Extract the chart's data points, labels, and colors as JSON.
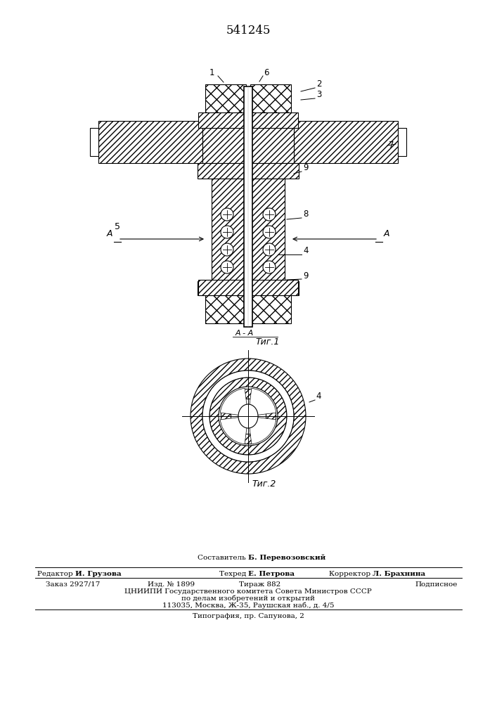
{
  "patent_number": "541245",
  "fig1_caption": "Τиг.1",
  "fig2_caption": "Τиг.2",
  "aa_section": "A - A",
  "label_1": "1",
  "label_2": "2",
  "label_3": "3",
  "label_4": "4",
  "label_5": "5",
  "label_6": "6",
  "label_7": "7",
  "label_8": "8",
  "label_9a": "9",
  "label_9b": "9",
  "label_A": "A",
  "составитель": "Составитель Б. Перевозовский",
  "редактор": "Редактор И. Грузова",
  "техред": "Техред Е. Петрова",
  "корректор": "Корректор Л. Брахнина",
  "заказ": "Заказ 2927/17",
  "изд": "Изд. № 1899",
  "тираж": "Тираж 882",
  "подписное": "Подписное",
  "цниипи": "ЦНИИПИ Государственного комитета Совета Министров СССР",
  "по_делам": "по делам изобретений и открытий",
  "адрес": "113035, Москва, Ж-35, Раушская наб., д. 4/5",
  "типография": "Типография, пр. Сапунова, 2",
  "bg_color": "#ffffff",
  "line_color": "#000000"
}
